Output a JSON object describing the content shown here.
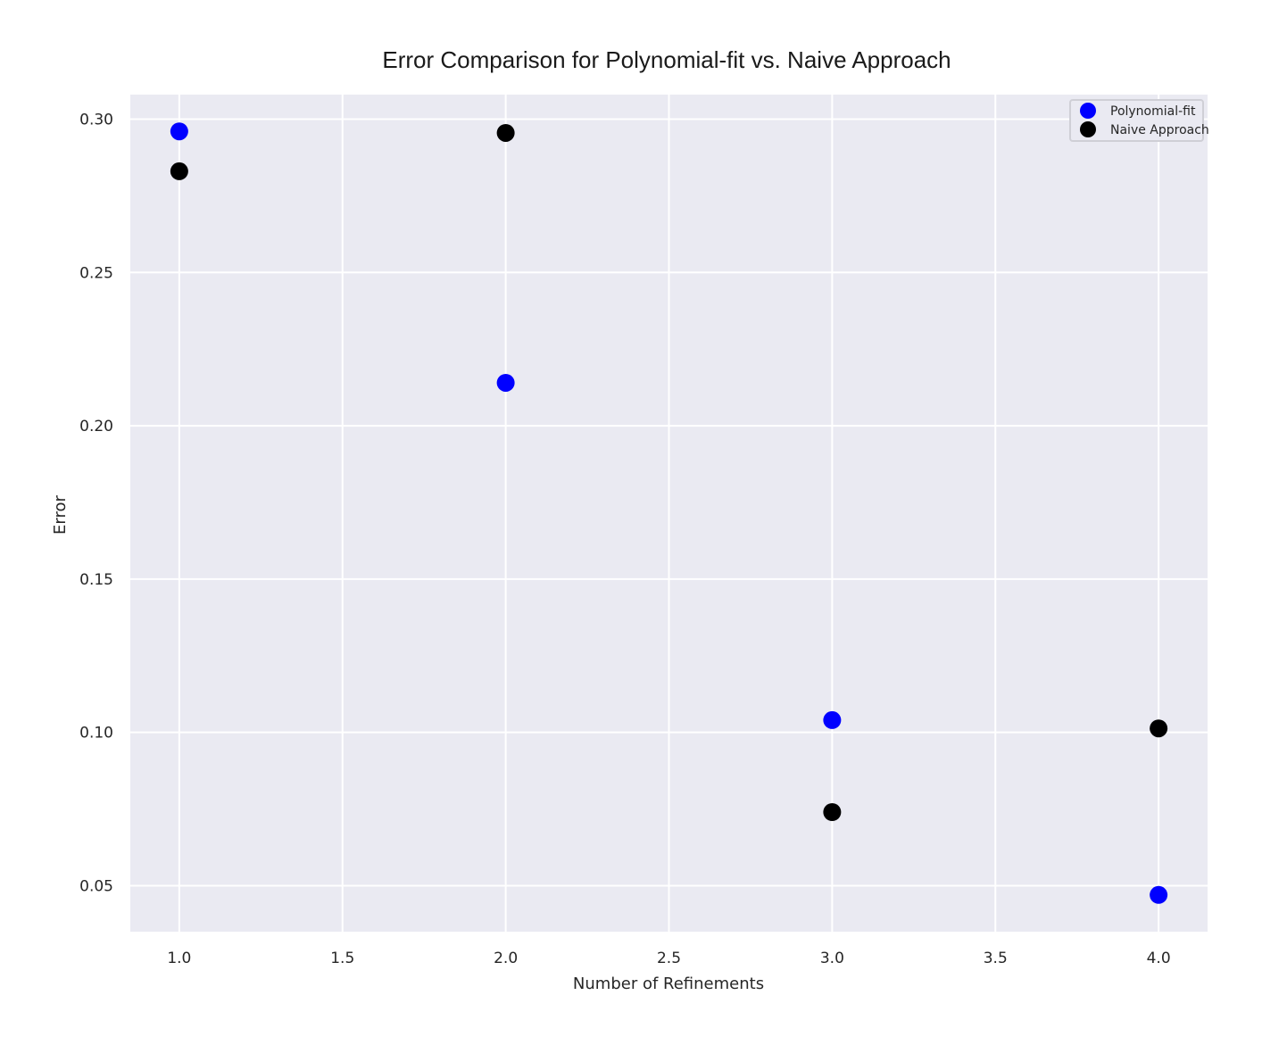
{
  "chart_data": {
    "type": "scatter",
    "title": "Error Comparison for Polynomial-fit vs. Naive Approach",
    "xlabel": "Number of Refinements",
    "ylabel": "Error",
    "xlim": [
      0.85,
      4.15
    ],
    "ylim": [
      0.035,
      0.308
    ],
    "xticks": [
      "1.0",
      "1.5",
      "2.0",
      "2.5",
      "3.0",
      "3.5",
      "4.0"
    ],
    "yticks": [
      "0.05",
      "0.10",
      "0.15",
      "0.20",
      "0.25",
      "0.30"
    ],
    "grid": true,
    "legend_position": "top-right",
    "series": [
      {
        "name": "Polynomial-fit",
        "color": "#0000ff",
        "x": [
          1,
          2,
          3,
          4
        ],
        "y": [
          0.296,
          0.214,
          0.104,
          0.047
        ]
      },
      {
        "name": "Naive Approach",
        "color": "#000000",
        "x": [
          1,
          2,
          3,
          4
        ],
        "y": [
          0.283,
          0.2955,
          0.074,
          0.1013
        ]
      }
    ]
  }
}
